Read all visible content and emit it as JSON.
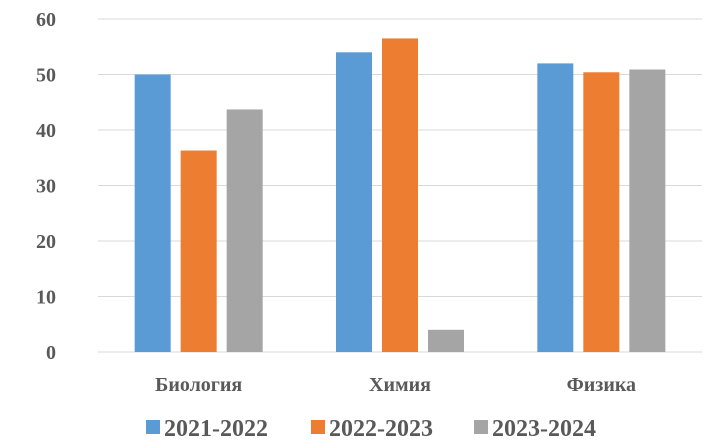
{
  "chart_data": {
    "type": "bar",
    "categories": [
      "Биология",
      "Химия",
      "Физика"
    ],
    "series": [
      {
        "name": "2021-2022",
        "color": "#5b9bd5",
        "values": [
          50,
          54,
          52
        ]
      },
      {
        "name": "2022-2023",
        "color": "#ed7d31",
        "values": [
          36.3,
          56.5,
          50.4
        ]
      },
      {
        "name": "2023-2024",
        "color": "#a5a5a5",
        "values": [
          43.7,
          4,
          50.9
        ]
      }
    ],
    "yticks": [
      0,
      10,
      20,
      30,
      40,
      50,
      60
    ],
    "ylim": [
      0,
      60
    ],
    "grid": true,
    "legend_position": "bottom"
  }
}
